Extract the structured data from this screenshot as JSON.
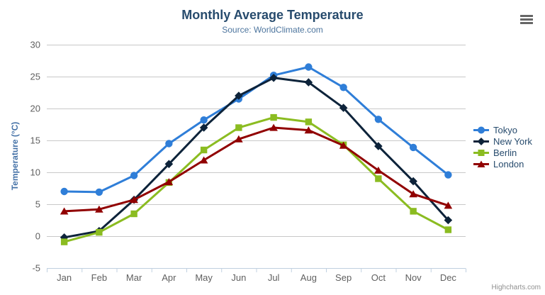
{
  "header": {
    "title": "Monthly Average Temperature",
    "subtitle": "Source: WorldClimate.com"
  },
  "credits_label": "Highcharts.com",
  "icons": {
    "context_menu": "hamburger-icon"
  },
  "colors": {
    "title": "#274b6d",
    "subtitle": "#4d759e",
    "axis_label": "#606060",
    "axis_title": "#4572a7",
    "grid": "#c8c8c8",
    "axis_line": "#c0d0e0",
    "legend_text": "#274b6d",
    "credits": "#909090"
  },
  "chart_data": {
    "type": "line",
    "title": "Monthly Average Temperature",
    "subtitle": "Source: WorldClimate.com",
    "xlabel": "",
    "ylabel": "Temperature (°C)",
    "categories": [
      "Jan",
      "Feb",
      "Mar",
      "Apr",
      "May",
      "Jun",
      "Jul",
      "Aug",
      "Sep",
      "Oct",
      "Nov",
      "Dec"
    ],
    "yticks": [
      -5,
      0,
      5,
      10,
      15,
      20,
      25,
      30
    ],
    "ylim": [
      -5,
      30
    ],
    "grid": true,
    "legend_position": "right",
    "series": [
      {
        "name": "Tokyo",
        "color": "#2f7ed8",
        "marker": "circle",
        "values": [
          7.0,
          6.9,
          9.5,
          14.5,
          18.2,
          21.5,
          25.2,
          26.5,
          23.3,
          18.3,
          13.9,
          9.6
        ]
      },
      {
        "name": "New York",
        "color": "#0d233a",
        "marker": "diamond",
        "values": [
          -0.2,
          0.8,
          5.7,
          11.3,
          17.0,
          22.0,
          24.8,
          24.1,
          20.1,
          14.1,
          8.6,
          2.5
        ]
      },
      {
        "name": "Berlin",
        "color": "#8bbc21",
        "marker": "square",
        "values": [
          -0.9,
          0.6,
          3.5,
          8.4,
          13.5,
          17.0,
          18.6,
          17.9,
          14.3,
          9.0,
          3.9,
          1.0
        ]
      },
      {
        "name": "London",
        "color": "#910000",
        "marker": "triangle",
        "values": [
          3.9,
          4.2,
          5.7,
          8.5,
          11.9,
          15.2,
          17.0,
          16.6,
          14.2,
          10.3,
          6.6,
          4.8
        ]
      }
    ]
  }
}
